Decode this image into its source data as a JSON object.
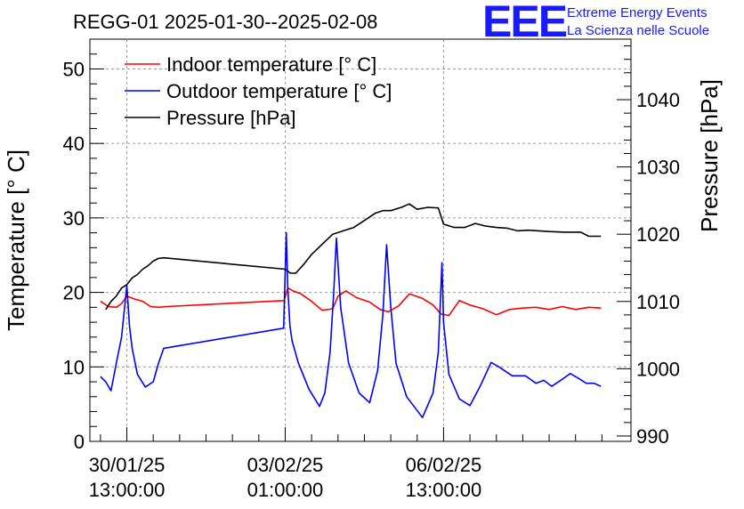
{
  "chart_data": {
    "type": "line",
    "title": "REGG-01 2025-01-30--2025-02-08",
    "ylabel": "Temperature [° C]",
    "y2label": "Pressure [hPa]",
    "ylim": [
      0,
      54
    ],
    "y2lim": [
      989.2,
      1049.0
    ],
    "xlim": [
      -0.7,
      9.55
    ],
    "yticks": [
      0,
      10,
      20,
      30,
      40,
      50
    ],
    "y2ticks": [
      990,
      1000,
      1010,
      1020,
      1030,
      1040
    ],
    "xticks": [
      {
        "x": 0.0,
        "label1": "30/01/25",
        "label2": "13:00:00"
      },
      {
        "x": 3.0,
        "label1": "03/02/25",
        "label2": "01:00:00"
      },
      {
        "x": 6.0,
        "label1": "06/02/25",
        "label2": "13:00:00"
      }
    ],
    "grid": true,
    "legend_position": "top-left",
    "series": [
      {
        "name": "Indoor temperature [° C]",
        "color": "#ff0000",
        "axis": "left",
        "x": [
          -0.5,
          -0.35,
          -0.2,
          -0.1,
          0.0,
          0.15,
          0.3,
          0.45,
          0.6,
          0.75,
          2.98,
          3.05,
          3.15,
          3.3,
          3.5,
          3.7,
          3.9,
          4.0,
          4.15,
          4.35,
          4.6,
          4.8,
          4.95,
          5.15,
          5.35,
          5.6,
          5.8,
          5.95,
          6.1,
          6.3,
          6.5,
          6.75,
          7.0,
          7.25,
          7.5,
          7.75,
          8.0,
          8.25,
          8.5,
          8.75,
          8.98
        ],
        "values": [
          18.8,
          18.1,
          18.0,
          18.5,
          19.5,
          19.1,
          18.8,
          18.1,
          18.0,
          18.1,
          18.9,
          20.6,
          20.2,
          19.8,
          18.8,
          17.6,
          17.8,
          19.5,
          20.2,
          19.3,
          18.7,
          17.7,
          17.4,
          18.2,
          19.8,
          19.2,
          18.3,
          17.1,
          16.9,
          18.9,
          18.3,
          17.8,
          17.0,
          17.7,
          17.9,
          18.0,
          17.7,
          18.1,
          17.7,
          18.0,
          17.9
        ]
      },
      {
        "name": "Outdoor temperature [° C]",
        "color": "#0000ff",
        "axis": "left",
        "x": [
          -0.5,
          -0.4,
          -0.3,
          -0.2,
          -0.1,
          0.0,
          0.05,
          0.1,
          0.2,
          0.35,
          0.5,
          0.6,
          0.7,
          2.97,
          3.02,
          3.05,
          3.09,
          3.13,
          3.25,
          3.45,
          3.65,
          3.75,
          3.85,
          3.92,
          3.97,
          4.05,
          4.2,
          4.4,
          4.6,
          4.75,
          4.85,
          4.92,
          5.0,
          5.1,
          5.3,
          5.6,
          5.8,
          5.9,
          5.97,
          6.0,
          6.1,
          6.3,
          6.5,
          6.7,
          6.9,
          7.05,
          7.3,
          7.55,
          7.75,
          7.9,
          8.05,
          8.2,
          8.4,
          8.55,
          8.7,
          8.85,
          8.98
        ],
        "values": [
          8.7,
          8.0,
          6.8,
          10.5,
          14.0,
          20.9,
          15.5,
          12.5,
          9.0,
          7.3,
          8.0,
          10.5,
          12.5,
          15.2,
          28.0,
          20.5,
          15.5,
          13.5,
          10.5,
          7.0,
          4.7,
          6.5,
          12.0,
          20.0,
          27.3,
          18.0,
          10.5,
          6.5,
          5.2,
          9.5,
          17.0,
          26.4,
          18.0,
          10.5,
          6.0,
          3.2,
          6.5,
          12.0,
          24.0,
          16.0,
          9.0,
          5.7,
          4.8,
          7.5,
          10.6,
          10.0,
          8.8,
          8.8,
          7.8,
          8.2,
          7.4,
          8.1,
          9.1,
          8.5,
          7.8,
          7.8,
          7.4
        ]
      },
      {
        "name": "Pressure [hPa]",
        "color": "#000000",
        "axis": "right",
        "x": [
          -0.4,
          -0.3,
          -0.2,
          -0.1,
          0.0,
          0.1,
          0.2,
          0.3,
          0.4,
          0.5,
          0.6,
          0.7,
          3.0,
          3.1,
          3.2,
          3.35,
          3.5,
          3.7,
          3.9,
          4.1,
          4.3,
          4.55,
          4.7,
          4.85,
          5.0,
          5.2,
          5.35,
          5.5,
          5.7,
          5.9,
          6.0,
          6.2,
          6.4,
          6.6,
          6.8,
          7.0,
          7.2,
          7.4,
          7.6,
          7.8,
          8.0,
          8.3,
          8.6,
          8.75,
          8.98
        ],
        "values": [
          1008.8,
          1010.0,
          1010.8,
          1012.0,
          1012.5,
          1013.5,
          1014.0,
          1014.8,
          1015.3,
          1016.0,
          1016.4,
          1016.5,
          1014.8,
          1014.2,
          1014.2,
          1015.5,
          1017.0,
          1018.5,
          1020.0,
          1020.5,
          1021.0,
          1022.3,
          1023.1,
          1023.5,
          1023.5,
          1024.0,
          1024.5,
          1023.7,
          1024.0,
          1023.9,
          1021.5,
          1021.0,
          1021.0,
          1021.6,
          1021.2,
          1021.0,
          1020.9,
          1020.5,
          1020.6,
          1020.5,
          1020.4,
          1020.3,
          1020.3,
          1019.7,
          1019.7
        ]
      }
    ]
  },
  "logo": {
    "letters": "EEE",
    "line1": "Extreme Energy Events",
    "line2": "La Scienza nelle Scuole"
  }
}
